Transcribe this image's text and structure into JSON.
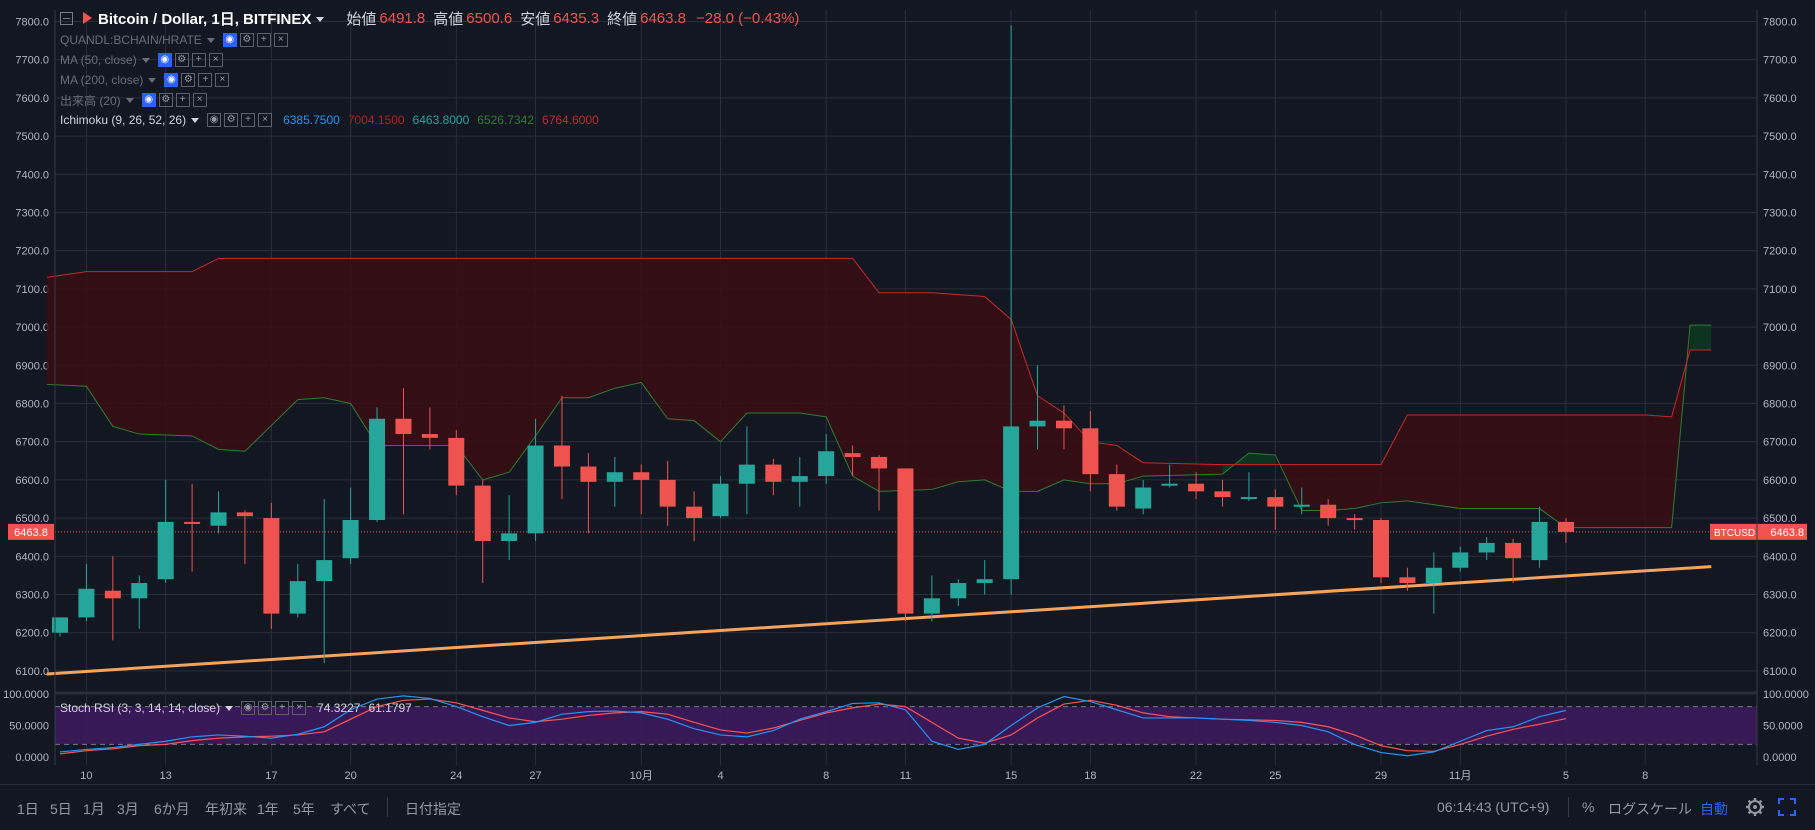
{
  "header": {
    "symbol": "Bitcoin / Dollar, 1日, BITFINEX",
    "open_label": "始値",
    "open": "6491.8",
    "high_label": "高値",
    "high": "6500.6",
    "low_label": "安値",
    "low": "6435.3",
    "close_label": "終値",
    "close": "6463.8",
    "change": "−28.0 (−0.43%)"
  },
  "indicators": [
    {
      "label": "QUANDL:BCHAIN/HRATE",
      "active": false
    },
    {
      "label": "MA (50, close)",
      "active": false
    },
    {
      "label": "MA (200, close)",
      "active": false
    },
    {
      "label": "出来高 (20)",
      "active": false
    },
    {
      "label": "Ichimoku (9, 26, 52, 26)",
      "active": true
    }
  ],
  "ichimoku_values": [
    {
      "value": "6385.7500",
      "color": "#2196f3"
    },
    {
      "value": "7004.1500",
      "color": "#b71c1c"
    },
    {
      "value": "6463.8000",
      "color": "#26a69a"
    },
    {
      "value": "6526.7342",
      "color": "#2e7d32"
    },
    {
      "value": "6764.6000",
      "color": "#c62828"
    }
  ],
  "stoch_rsi": {
    "label": "Stoch RSI (3, 3, 14, 14, close)",
    "k_value": "74.3227",
    "d_value": "61.1797",
    "k_color": "#2196f3",
    "d_color": "#ff5252"
  },
  "price_tag": {
    "left": "6463.8",
    "right_symbol": "BTCUSD",
    "right_value": "6463.8"
  },
  "bottom_bar": {
    "ranges": [
      "1日",
      "5日",
      "1月",
      "3月",
      "6か月",
      "年初来",
      "1年",
      "5年",
      "すべて"
    ],
    "goto_date": "日付指定",
    "time": "06:14:43 (UTC+9)",
    "percent": "%",
    "log_scale": "ログスケール",
    "auto": "自動"
  },
  "colors": {
    "background": "#131722",
    "grid": "#2a2e39",
    "up": "#26a69a",
    "down": "#ef5350",
    "trendline": "#f7a35c",
    "cloud_bear": "#3a0d12",
    "cloud_bull": "#0d3a20",
    "stoch_band": "#3b1a5c"
  },
  "chart_data": {
    "type": "candlestick",
    "title": "Bitcoin / Dollar, 1日, BITFINEX",
    "x_ticks": [
      "10",
      "13",
      "17",
      "20",
      "24",
      "27",
      "10月",
      "4",
      "8",
      "11",
      "15",
      "18",
      "22",
      "25",
      "29",
      "11月",
      "5",
      "8"
    ],
    "y_ticks": [
      "6100.0",
      "6200.0",
      "6300.0",
      "6400.0",
      "6500.0",
      "6600.0",
      "6700.0",
      "6800.0",
      "6900.0",
      "7000.0",
      "7100.0",
      "7200.0",
      "7300.0",
      "7400.0",
      "7500.0",
      "7600.0",
      "7700.0",
      "7800.0"
    ],
    "ylim": [
      6050,
      7830
    ],
    "stoch_y_ticks": [
      "0.0000",
      "50.0000",
      "100.0000"
    ],
    "stoch_ylim": [
      0,
      100
    ],
    "candles": [
      {
        "date": "09-09",
        "o": 6200,
        "h": 6240,
        "l": 6190,
        "c": 6240
      },
      {
        "date": "09-10",
        "o": 6240,
        "h": 6380,
        "l": 6230,
        "c": 6315
      },
      {
        "date": "09-11",
        "o": 6310,
        "h": 6400,
        "l": 6180,
        "c": 6290
      },
      {
        "date": "09-12",
        "o": 6290,
        "h": 6350,
        "l": 6210,
        "c": 6330
      },
      {
        "date": "09-13",
        "o": 6340,
        "h": 6600,
        "l": 6330,
        "c": 6490
      },
      {
        "date": "09-14",
        "o": 6490,
        "h": 6590,
        "l": 6360,
        "c": 6485
      },
      {
        "date": "09-15",
        "o": 6480,
        "h": 6570,
        "l": 6460,
        "c": 6515
      },
      {
        "date": "09-16",
        "o": 6515,
        "h": 6520,
        "l": 6380,
        "c": 6505
      },
      {
        "date": "09-17",
        "o": 6500,
        "h": 6540,
        "l": 6210,
        "c": 6250
      },
      {
        "date": "09-18",
        "o": 6250,
        "h": 6380,
        "l": 6240,
        "c": 6335
      },
      {
        "date": "09-19",
        "o": 6335,
        "h": 6550,
        "l": 6120,
        "c": 6390
      },
      {
        "date": "09-20",
        "o": 6395,
        "h": 6580,
        "l": 6380,
        "c": 6495
      },
      {
        "date": "09-21",
        "o": 6495,
        "h": 6790,
        "l": 6490,
        "c": 6760
      },
      {
        "date": "09-22",
        "o": 6760,
        "h": 6840,
        "l": 6510,
        "c": 6720
      },
      {
        "date": "09-23",
        "o": 6720,
        "h": 6790,
        "l": 6680,
        "c": 6710
      },
      {
        "date": "09-24",
        "o": 6710,
        "h": 6730,
        "l": 6560,
        "c": 6585
      },
      {
        "date": "09-25",
        "o": 6585,
        "h": 6600,
        "l": 6330,
        "c": 6440
      },
      {
        "date": "09-26",
        "o": 6440,
        "h": 6560,
        "l": 6390,
        "c": 6460
      },
      {
        "date": "09-27",
        "o": 6460,
        "h": 6760,
        "l": 6440,
        "c": 6690
      },
      {
        "date": "09-28",
        "o": 6690,
        "h": 6820,
        "l": 6550,
        "c": 6635
      },
      {
        "date": "09-29",
        "o": 6635,
        "h": 6670,
        "l": 6460,
        "c": 6595
      },
      {
        "date": "09-30",
        "o": 6595,
        "h": 6660,
        "l": 6530,
        "c": 6620
      },
      {
        "date": "10-01",
        "o": 6620,
        "h": 6640,
        "l": 6510,
        "c": 6600
      },
      {
        "date": "10-02",
        "o": 6600,
        "h": 6650,
        "l": 6480,
        "c": 6530
      },
      {
        "date": "10-03",
        "o": 6530,
        "h": 6570,
        "l": 6440,
        "c": 6500
      },
      {
        "date": "10-04",
        "o": 6505,
        "h": 6610,
        "l": 6500,
        "c": 6590
      },
      {
        "date": "10-05",
        "o": 6590,
        "h": 6740,
        "l": 6510,
        "c": 6640
      },
      {
        "date": "10-06",
        "o": 6640,
        "h": 6655,
        "l": 6560,
        "c": 6595
      },
      {
        "date": "10-07",
        "o": 6595,
        "h": 6660,
        "l": 6530,
        "c": 6610
      },
      {
        "date": "10-08",
        "o": 6610,
        "h": 6720,
        "l": 6590,
        "c": 6675
      },
      {
        "date": "10-09",
        "o": 6670,
        "h": 6690,
        "l": 6610,
        "c": 6660
      },
      {
        "date": "10-10",
        "o": 6660,
        "h": 6665,
        "l": 6520,
        "c": 6630
      },
      {
        "date": "10-11",
        "o": 6630,
        "h": 6630,
        "l": 6230,
        "c": 6250
      },
      {
        "date": "10-12",
        "o": 6250,
        "h": 6350,
        "l": 6230,
        "c": 6290
      },
      {
        "date": "10-13",
        "o": 6290,
        "h": 6340,
        "l": 6270,
        "c": 6330
      },
      {
        "date": "10-14",
        "o": 6330,
        "h": 6390,
        "l": 6300,
        "c": 6340
      },
      {
        "date": "10-15",
        "o": 6340,
        "h": 7790,
        "l": 6300,
        "c": 6740
      },
      {
        "date": "10-16",
        "o": 6740,
        "h": 6900,
        "l": 6680,
        "c": 6755
      },
      {
        "date": "10-17",
        "o": 6755,
        "h": 6795,
        "l": 6680,
        "c": 6735
      },
      {
        "date": "10-18",
        "o": 6735,
        "h": 6780,
        "l": 6570,
        "c": 6615
      },
      {
        "date": "10-19",
        "o": 6615,
        "h": 6640,
        "l": 6520,
        "c": 6530
      },
      {
        "date": "10-20",
        "o": 6525,
        "h": 6600,
        "l": 6510,
        "c": 6580
      },
      {
        "date": "10-21",
        "o": 6585,
        "h": 6640,
        "l": 6580,
        "c": 6590
      },
      {
        "date": "10-22",
        "o": 6590,
        "h": 6620,
        "l": 6550,
        "c": 6570
      },
      {
        "date": "10-23",
        "o": 6570,
        "h": 6600,
        "l": 6530,
        "c": 6555
      },
      {
        "date": "10-24",
        "o": 6550,
        "h": 6620,
        "l": 6545,
        "c": 6555
      },
      {
        "date": "10-25",
        "o": 6555,
        "h": 6575,
        "l": 6470,
        "c": 6530
      },
      {
        "date": "10-26",
        "o": 6530,
        "h": 6580,
        "l": 6510,
        "c": 6535
      },
      {
        "date": "10-27",
        "o": 6535,
        "h": 6550,
        "l": 6480,
        "c": 6500
      },
      {
        "date": "10-28",
        "o": 6500,
        "h": 6510,
        "l": 6470,
        "c": 6495
      },
      {
        "date": "10-29",
        "o": 6495,
        "h": 6500,
        "l": 6330,
        "c": 6345
      },
      {
        "date": "10-30",
        "o": 6345,
        "h": 6370,
        "l": 6310,
        "c": 6330
      },
      {
        "date": "10-31",
        "o": 6330,
        "h": 6410,
        "l": 6250,
        "c": 6370
      },
      {
        "date": "11-01",
        "o": 6370,
        "h": 6425,
        "l": 6360,
        "c": 6410
      },
      {
        "date": "11-02",
        "o": 6410,
        "h": 6450,
        "l": 6390,
        "c": 6435
      },
      {
        "date": "11-03",
        "o": 6435,
        "h": 6445,
        "l": 6330,
        "c": 6395
      },
      {
        "date": "11-04",
        "o": 6390,
        "h": 6530,
        "l": 6370,
        "c": 6490
      },
      {
        "date": "11-05",
        "o": 6490,
        "h": 6500,
        "l": 6435,
        "c": 6464
      }
    ],
    "cloud": [
      {
        "t": -0.5,
        "a": 6850,
        "b": 7130
      },
      {
        "t": 1,
        "a": 6845,
        "b": 7145
      },
      {
        "t": 2,
        "a": 6740,
        "b": 7145
      },
      {
        "t": 3,
        "a": 6720,
        "b": 7145
      },
      {
        "t": 5,
        "a": 6715,
        "b": 7145
      },
      {
        "t": 6,
        "a": 6680,
        "b": 7180
      },
      {
        "t": 7,
        "a": 6675,
        "b": 7180
      },
      {
        "t": 9,
        "a": 6810,
        "b": 7180
      },
      {
        "t": 10,
        "a": 6815,
        "b": 7180
      },
      {
        "t": 11,
        "a": 6800,
        "b": 7180
      },
      {
        "t": 12,
        "a": 6690,
        "b": 7180
      },
      {
        "t": 15,
        "a": 6690,
        "b": 7180
      },
      {
        "t": 16,
        "a": 6600,
        "b": 7180
      },
      {
        "t": 17,
        "a": 6620,
        "b": 7180
      },
      {
        "t": 18,
        "a": 6715,
        "b": 7180
      },
      {
        "t": 19,
        "a": 6815,
        "b": 7180
      },
      {
        "t": 20,
        "a": 6815,
        "b": 7180
      },
      {
        "t": 21,
        "a": 6840,
        "b": 7180
      },
      {
        "t": 22,
        "a": 6855,
        "b": 7180
      },
      {
        "t": 23,
        "a": 6760,
        "b": 7180
      },
      {
        "t": 24,
        "a": 6755,
        "b": 7180
      },
      {
        "t": 25,
        "a": 6700,
        "b": 7180
      },
      {
        "t": 26,
        "a": 6775,
        "b": 7180
      },
      {
        "t": 28,
        "a": 6775,
        "b": 7180
      },
      {
        "t": 29,
        "a": 6765,
        "b": 7180
      },
      {
        "t": 30,
        "a": 6610,
        "b": 7180
      },
      {
        "t": 31,
        "a": 6570,
        "b": 7090
      },
      {
        "t": 33,
        "a": 6575,
        "b": 7090
      },
      {
        "t": 34,
        "a": 6595,
        "b": 7085
      },
      {
        "t": 35,
        "a": 6600,
        "b": 7080
      },
      {
        "t": 36,
        "a": 6570,
        "b": 7020
      },
      {
        "t": 37,
        "a": 6570,
        "b": 6820
      },
      {
        "t": 38,
        "a": 6600,
        "b": 6775
      },
      {
        "t": 39,
        "a": 6590,
        "b": 6700
      },
      {
        "t": 40,
        "a": 6590,
        "b": 6690
      },
      {
        "t": 41,
        "a": 6610,
        "b": 6645
      },
      {
        "t": 44,
        "a": 6615,
        "b": 6640
      },
      {
        "t": 45,
        "a": 6670,
        "b": 6640
      },
      {
        "t": 46,
        "a": 6665,
        "b": 6640
      },
      {
        "t": 47,
        "a": 6520,
        "b": 6640
      },
      {
        "t": 48,
        "a": 6520,
        "b": 6640
      },
      {
        "t": 49,
        "a": 6525,
        "b": 6640
      },
      {
        "t": 50,
        "a": 6540,
        "b": 6640
      },
      {
        "t": 51,
        "a": 6545,
        "b": 6770
      },
      {
        "t": 53,
        "a": 6525,
        "b": 6770
      },
      {
        "t": 56,
        "a": 6525,
        "b": 6770
      },
      {
        "t": 57,
        "a": 6475,
        "b": 6770
      },
      {
        "t": 60,
        "a": 6475,
        "b": 6770
      },
      {
        "t": 61,
        "a": 6475,
        "b": 6765
      },
      {
        "t": 61.7,
        "a": 7005,
        "b": 6940
      },
      {
        "t": 62.5,
        "a": 7005,
        "b": 6940
      }
    ],
    "trendline": [
      {
        "t": -0.5,
        "y": 6092
      },
      {
        "t": 62.5,
        "y": 6373
      }
    ],
    "stoch_k": [
      8,
      12,
      15,
      20,
      25,
      32,
      35,
      33,
      30,
      36,
      48,
      75,
      92,
      97,
      93,
      80,
      64,
      50,
      55,
      68,
      72,
      73,
      70,
      60,
      45,
      35,
      32,
      42,
      60,
      72,
      85,
      86,
      75,
      25,
      12,
      20,
      50,
      78,
      96,
      88,
      75,
      62,
      62,
      62,
      60,
      58,
      55,
      50,
      40,
      20,
      7,
      2,
      8,
      25,
      42,
      48,
      64,
      74
    ],
    "stoch_d": [
      5,
      10,
      13,
      18,
      20,
      26,
      30,
      32,
      33,
      35,
      40,
      60,
      80,
      90,
      92,
      86,
      74,
      62,
      56,
      60,
      66,
      70,
      72,
      68,
      55,
      43,
      38,
      46,
      58,
      70,
      78,
      84,
      80,
      55,
      30,
      22,
      35,
      62,
      84,
      90,
      82,
      70,
      64,
      62,
      60,
      59,
      58,
      55,
      48,
      35,
      18,
      10,
      9,
      20,
      33,
      44,
      52,
      61
    ]
  }
}
